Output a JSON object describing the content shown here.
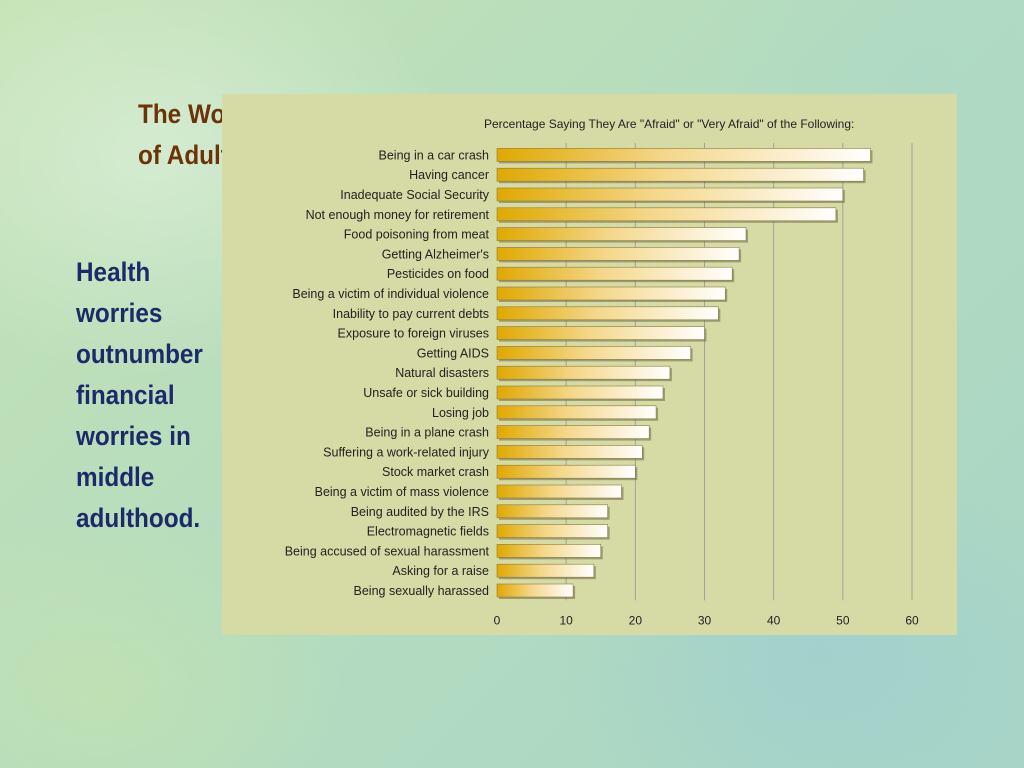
{
  "slide": {
    "title_lines": [
      "The Worries",
      "of Adulthood"
    ],
    "body_lines": [
      "Health",
      "worries",
      "outnumber",
      "financial",
      "worries in",
      "middle",
      "adulthood."
    ]
  },
  "colors": {
    "title": "#6b3408",
    "body": "#1c2a6a",
    "panel_bg": "#d6dba5",
    "bar_start": "#e0a800",
    "bar_end": "#ffffff",
    "gridline": "#a0a39a"
  },
  "chart_data": {
    "type": "bar",
    "orientation": "horizontal",
    "title": "Percentage Saying They Are \"Afraid\" or \"Very Afraid\" of the Following:",
    "xlabel": "",
    "ylabel": "",
    "xlim": [
      0,
      60
    ],
    "xticks": [
      0,
      10,
      20,
      30,
      40,
      50,
      60
    ],
    "grid": true,
    "categories": [
      "Being in a car crash",
      "Having cancer",
      "Inadequate Social Security",
      "Not enough money for retirement",
      "Food poisoning from meat",
      "Getting Alzheimer's",
      "Pesticides on food",
      "Being a victim of individual violence",
      "Inability to pay current debts",
      "Exposure to foreign viruses",
      "Getting AIDS",
      "Natural disasters",
      "Unsafe or sick building",
      "Losing job",
      "Being in a plane crash",
      "Suffering a work-related injury",
      "Stock market crash",
      "Being a victim of mass violence",
      "Being audited by the IRS",
      "Electromagnetic fields",
      "Being accused of sexual harassment",
      "Asking for a raise",
      "Being sexually harassed"
    ],
    "values": [
      54,
      53,
      50,
      49,
      36,
      35,
      34,
      33,
      32,
      30,
      28,
      25,
      24,
      23,
      22,
      21,
      20,
      18,
      16,
      16,
      15,
      14,
      11
    ]
  }
}
